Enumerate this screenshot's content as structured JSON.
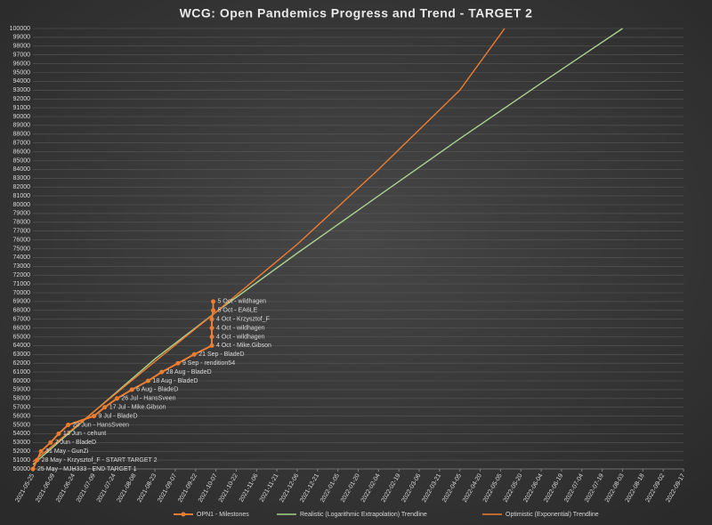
{
  "chart_data": {
    "type": "line",
    "title": "WCG: Open Pandemics Progress and Trend - TARGET 2",
    "xlim": [
      "2021-05-25",
      "2022-09-17"
    ],
    "xticks": [
      "2021-05-25",
      "2021-06-09",
      "2021-06-24",
      "2021-07-09",
      "2021-07-24",
      "2021-08-08",
      "2021-08-23",
      "2021-09-07",
      "2021-09-22",
      "2021-10-07",
      "2021-10-22",
      "2021-11-06",
      "2021-11-21",
      "2021-12-06",
      "2021-12-21",
      "2022-01-05",
      "2022-01-20",
      "2022-02-04",
      "2022-02-19",
      "2022-03-06",
      "2022-03-21",
      "2022-04-05",
      "2022-04-20",
      "2022-05-05",
      "2022-05-20",
      "2022-06-04",
      "2022-06-19",
      "2022-07-04",
      "2022-07-19",
      "2022-08-03",
      "2022-08-18",
      "2022-09-02",
      "2022-09-17"
    ],
    "ylim": [
      50000,
      100000
    ],
    "yticks": [
      50000,
      51000,
      52000,
      53000,
      54000,
      55000,
      56000,
      57000,
      58000,
      59000,
      60000,
      61000,
      62000,
      63000,
      64000,
      65000,
      66000,
      67000,
      68000,
      69000,
      70000,
      71000,
      72000,
      73000,
      74000,
      75000,
      76000,
      77000,
      78000,
      79000,
      80000,
      81000,
      82000,
      83000,
      84000,
      85000,
      86000,
      87000,
      88000,
      89000,
      90000,
      91000,
      92000,
      93000,
      94000,
      95000,
      96000,
      97000,
      98000,
      99000,
      100000
    ],
    "grid": true,
    "legend": "bottom",
    "series": [
      {
        "name": "OPN1 - Milestones",
        "color": "#ed7d31",
        "markers": true,
        "x": [
          "2021-05-25",
          "2021-05-28",
          "2021-05-31",
          "2021-06-07",
          "2021-06-13",
          "2021-06-20",
          "2021-07-09",
          "2021-07-17",
          "2021-07-26",
          "2021-08-06",
          "2021-08-18",
          "2021-08-28",
          "2021-09-09",
          "2021-09-21",
          "2021-10-04",
          "2021-10-04",
          "2021-10-04",
          "2021-10-04",
          "2021-10-05",
          "2021-10-05"
        ],
        "values": [
          50000,
          51000,
          52000,
          53000,
          54000,
          55000,
          56000,
          57000,
          58000,
          59000,
          60000,
          61000,
          62000,
          63000,
          64000,
          65000,
          66000,
          67000,
          68000,
          69000
        ],
        "labels": [
          "25 May - MJH333 - END TARGET 1",
          "28 May - Krzysztof_F - START TARGET 2",
          "31 May - GunZi",
          "7 Jun - BladeD",
          "13 Jun - cehunt",
          "20 Jun - HansSveen",
          "9 Jul - BladeD",
          "17 Jul - Mike.Gibson",
          "26 Jul - HansSveen",
          "6 Aug - BladeD",
          "18 Aug - BladeD",
          "28 Aug - BladeD",
          "9 Sep - rendition54",
          "21 Sep - BladeD",
          "4 Oct - Mike.Gibson",
          "4 Oct - wildhagen",
          "4 Oct - wildhagen",
          "4 Oct - Krzysztof_F",
          "5 Oct - EA6LE",
          "5 Oct - wildhagen"
        ]
      },
      {
        "name": "Realistic (Logarithmic Extrapolation) Trendline",
        "color": "#a9d18e",
        "x": [
          "2021-05-25",
          "2021-07-09",
          "2021-08-23",
          "2021-10-07",
          "2021-12-06",
          "2022-02-04",
          "2022-04-05",
          "2022-06-04",
          "2022-08-03"
        ],
        "values": [
          50500,
          56500,
          62500,
          67800,
          74500,
          81000,
          87500,
          93800,
          100000
        ]
      },
      {
        "name": "Optimistic (Exponential) Trendline",
        "color": "#ed7d31",
        "x": [
          "2021-05-25",
          "2021-07-09",
          "2021-08-23",
          "2021-10-07",
          "2021-12-06",
          "2022-02-04",
          "2022-04-05",
          "2022-05-08"
        ],
        "values": [
          50800,
          56500,
          62200,
          67800,
          75500,
          84000,
          93000,
          100000
        ]
      }
    ]
  }
}
